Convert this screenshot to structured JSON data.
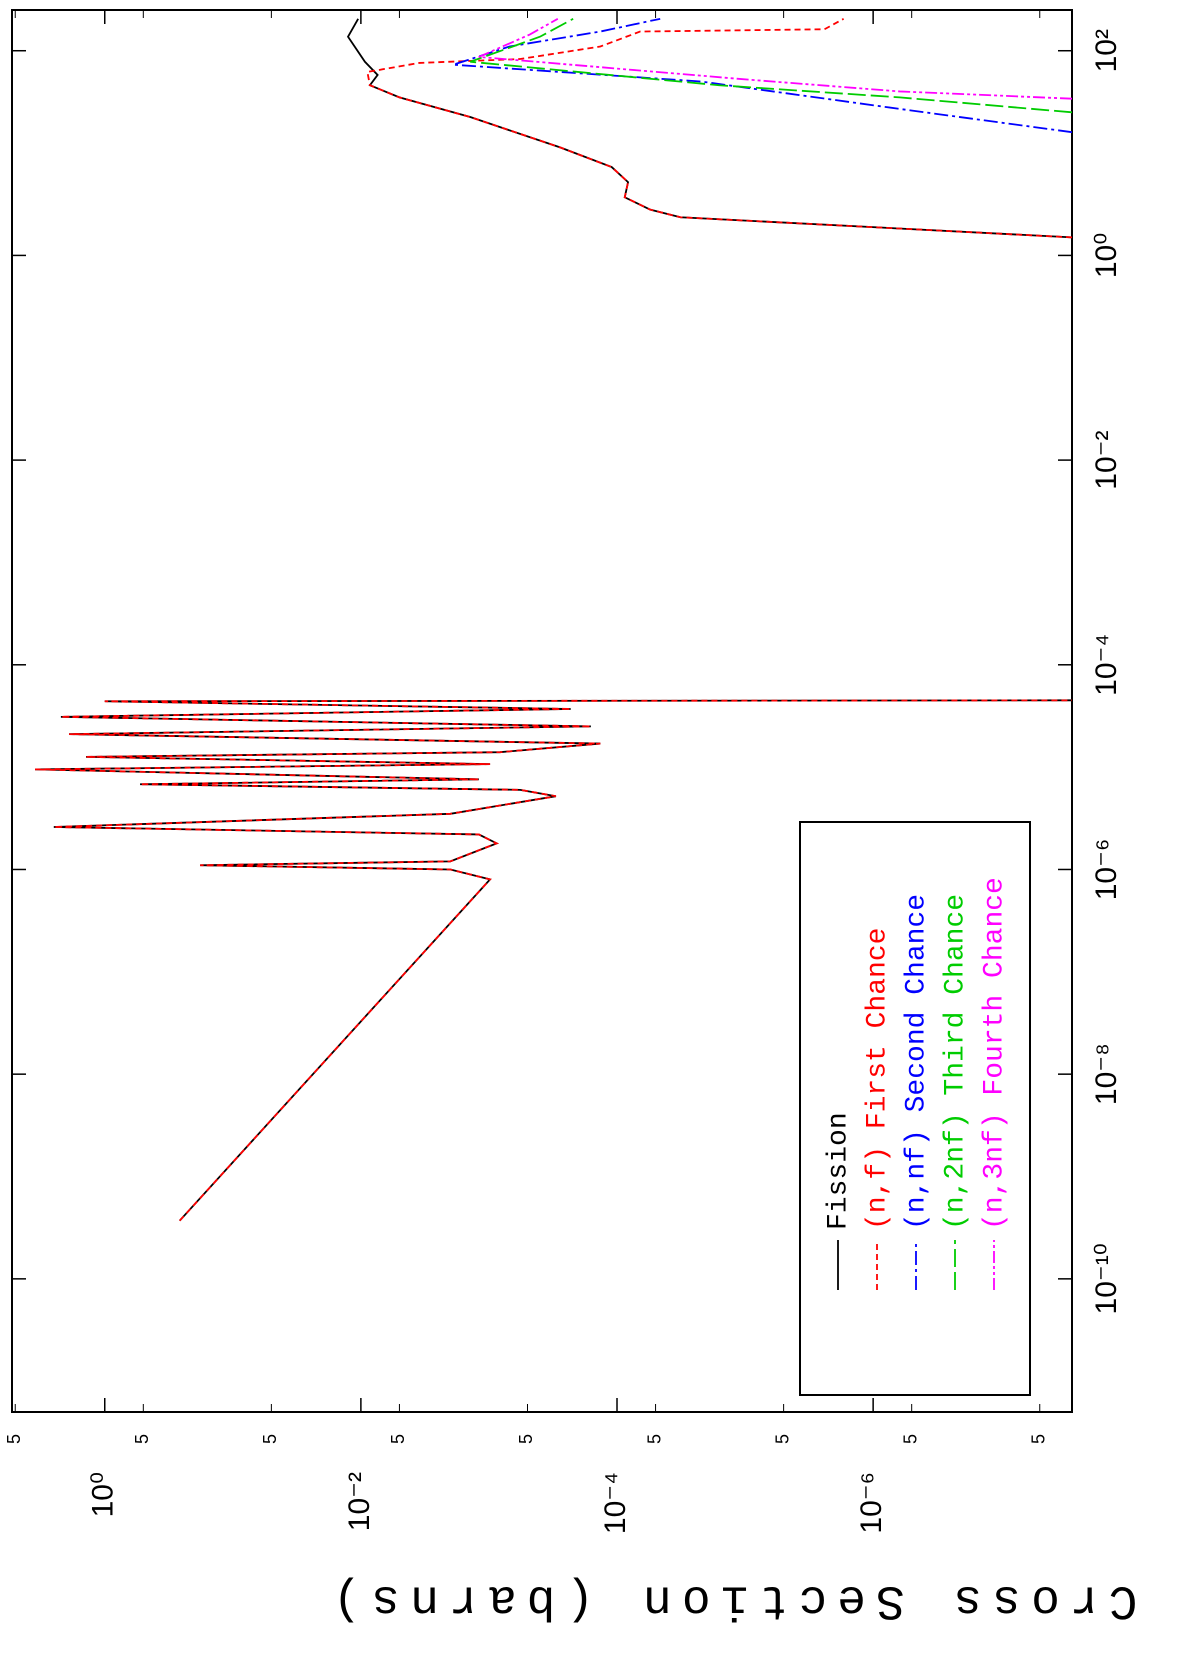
{
  "chart_data": {
    "type": "line",
    "y_label": "Cross Section (barns)",
    "log_x": true,
    "log_y": true,
    "xlim": [
      5e-12,
      250
    ],
    "ylim": [
      2.8e-08,
      5.3
    ],
    "xticks": [
      {
        "value": 1e-10,
        "label": "10⁻¹⁰"
      },
      {
        "value": 1e-08,
        "label": "10⁻⁸"
      },
      {
        "value": 1e-06,
        "label": "10⁻⁶"
      },
      {
        "value": 0.0001,
        "label": "10⁻⁴"
      },
      {
        "value": 0.01,
        "label": "10⁻²"
      },
      {
        "value": 1,
        "label": "10⁰"
      },
      {
        "value": 100,
        "label": "10²"
      }
    ],
    "yticks": [
      {
        "value": 1,
        "label": "10⁰"
      },
      {
        "value": 0.01,
        "label": "10⁻²"
      },
      {
        "value": 0.0001,
        "label": "10⁻⁴"
      },
      {
        "value": 1e-06,
        "label": "10⁻⁶"
      }
    ],
    "yminor_ticks": [
      {
        "value": 5,
        "label": "5"
      },
      {
        "value": 0.5,
        "label": "5"
      },
      {
        "value": 0.05,
        "label": "5"
      },
      {
        "value": 0.005,
        "label": "5"
      },
      {
        "value": 0.0005,
        "label": "5"
      },
      {
        "value": 5e-05,
        "label": "5"
      },
      {
        "value": 5e-06,
        "label": "5"
      },
      {
        "value": 5e-07,
        "label": "5"
      },
      {
        "value": 5e-08,
        "label": "5"
      }
    ],
    "series": [
      {
        "name": "Fission",
        "color": "#000000",
        "dash": "none",
        "x": [
          3.7e-10,
          8e-07,
          1e-06,
          1.1e-06,
          1.2e-06,
          1.8e-06,
          2.2e-06,
          2.6e-06,
          3.5e-06,
          5.2e-06,
          6e-06,
          6.8e-06,
          7.6e-06,
          9.5e-06,
          1.07e-05,
          1.26e-05,
          1.4e-05,
          1.7e-05,
          2.1e-05,
          2.5e-05,
          3.1e-05,
          3.7e-05,
          4.4e-05,
          4.5e-05,
          1,
          1.5,
          2.36,
          2.8,
          3.7,
          5.2,
          7.3,
          11.4,
          22.5,
          35,
          46,
          58,
          78,
          137,
          205
        ],
        "values": [
          0.26,
          0.00098,
          0.002,
          0.18,
          0.002,
          0.00087,
          0.0012,
          2.5,
          0.002,
          0.0003,
          0.00057,
          0.53,
          0.0012,
          3.5,
          0.00098,
          1.4,
          0.00082,
          0.000135,
          1.9,
          0.00016,
          2.2,
          0.00023,
          1,
          1e-08,
          null,
          2.8e-08,
          3.2e-05,
          5.5e-05,
          8.7e-05,
          8.2e-05,
          0.00011,
          0.00028,
          0.0014,
          0.005,
          0.0085,
          0.0074,
          0.0093,
          0.0126,
          0.0105
        ]
      },
      {
        "name": "(n,f) First Chance",
        "color": "#ff0000",
        "dash": "6,4",
        "x": [
          3.7e-10,
          8e-07,
          1e-06,
          1.1e-06,
          1.2e-06,
          1.8e-06,
          2.2e-06,
          2.6e-06,
          3.5e-06,
          5.2e-06,
          6e-06,
          6.8e-06,
          7.6e-06,
          9.5e-06,
          1.07e-05,
          1.26e-05,
          1.4e-05,
          1.7e-05,
          2.1e-05,
          2.5e-05,
          3.1e-05,
          3.7e-05,
          4.4e-05,
          4.5e-05,
          1,
          1.5,
          2.36,
          2.8,
          3.7,
          5.2,
          7.3,
          11.4,
          22.5,
          35,
          46,
          62,
          76,
          83,
          110,
          154,
          162,
          205
        ],
        "values": [
          0.26,
          0.00098,
          0.002,
          0.18,
          0.002,
          0.00087,
          0.0012,
          2.5,
          0.002,
          0.0003,
          0.00057,
          0.53,
          0.0012,
          3.5,
          0.00098,
          1.4,
          0.00082,
          0.000135,
          1.9,
          0.00016,
          2.2,
          0.00023,
          1,
          1e-08,
          null,
          2.8e-08,
          3.2e-05,
          5.5e-05,
          8.7e-05,
          8.2e-05,
          0.00011,
          0.00028,
          0.0014,
          0.005,
          0.0085,
          0.0089,
          0.0035,
          0.00057,
          0.000135,
          6.6e-05,
          2.4e-06,
          1.7e-06
        ]
      },
      {
        "name": "(n,nf) Second Chance",
        "color": "#0000ff",
        "dash": "14,4,3,4",
        "x": [
          16,
          27,
          50,
          73,
          110,
          154,
          205
        ],
        "values": [
          2.8e-08,
          6.2e-07,
          2.2e-05,
          0.0019,
          0.00069,
          0.000135,
          4.6e-05
        ]
      },
      {
        "name": "(n,2nf) Third Chance",
        "color": "#00cc00",
        "dash": "18,5",
        "x": [
          25,
          35,
          46,
          78,
          137,
          205
        ],
        "values": [
          2.8e-08,
          6.2e-07,
          1.6e-05,
          0.0014,
          0.0004,
          0.00022
        ]
      },
      {
        "name": "(n,3nf) Fourth Chance",
        "color": "#ff00ff",
        "dash": "12,3,3,3,3,3",
        "x": [
          34,
          40,
          53,
          87,
          144,
          205
        ],
        "values": [
          2.8e-08,
          6.2e-07,
          1.1e-05,
          0.0012,
          0.00048,
          0.00029
        ]
      }
    ]
  }
}
